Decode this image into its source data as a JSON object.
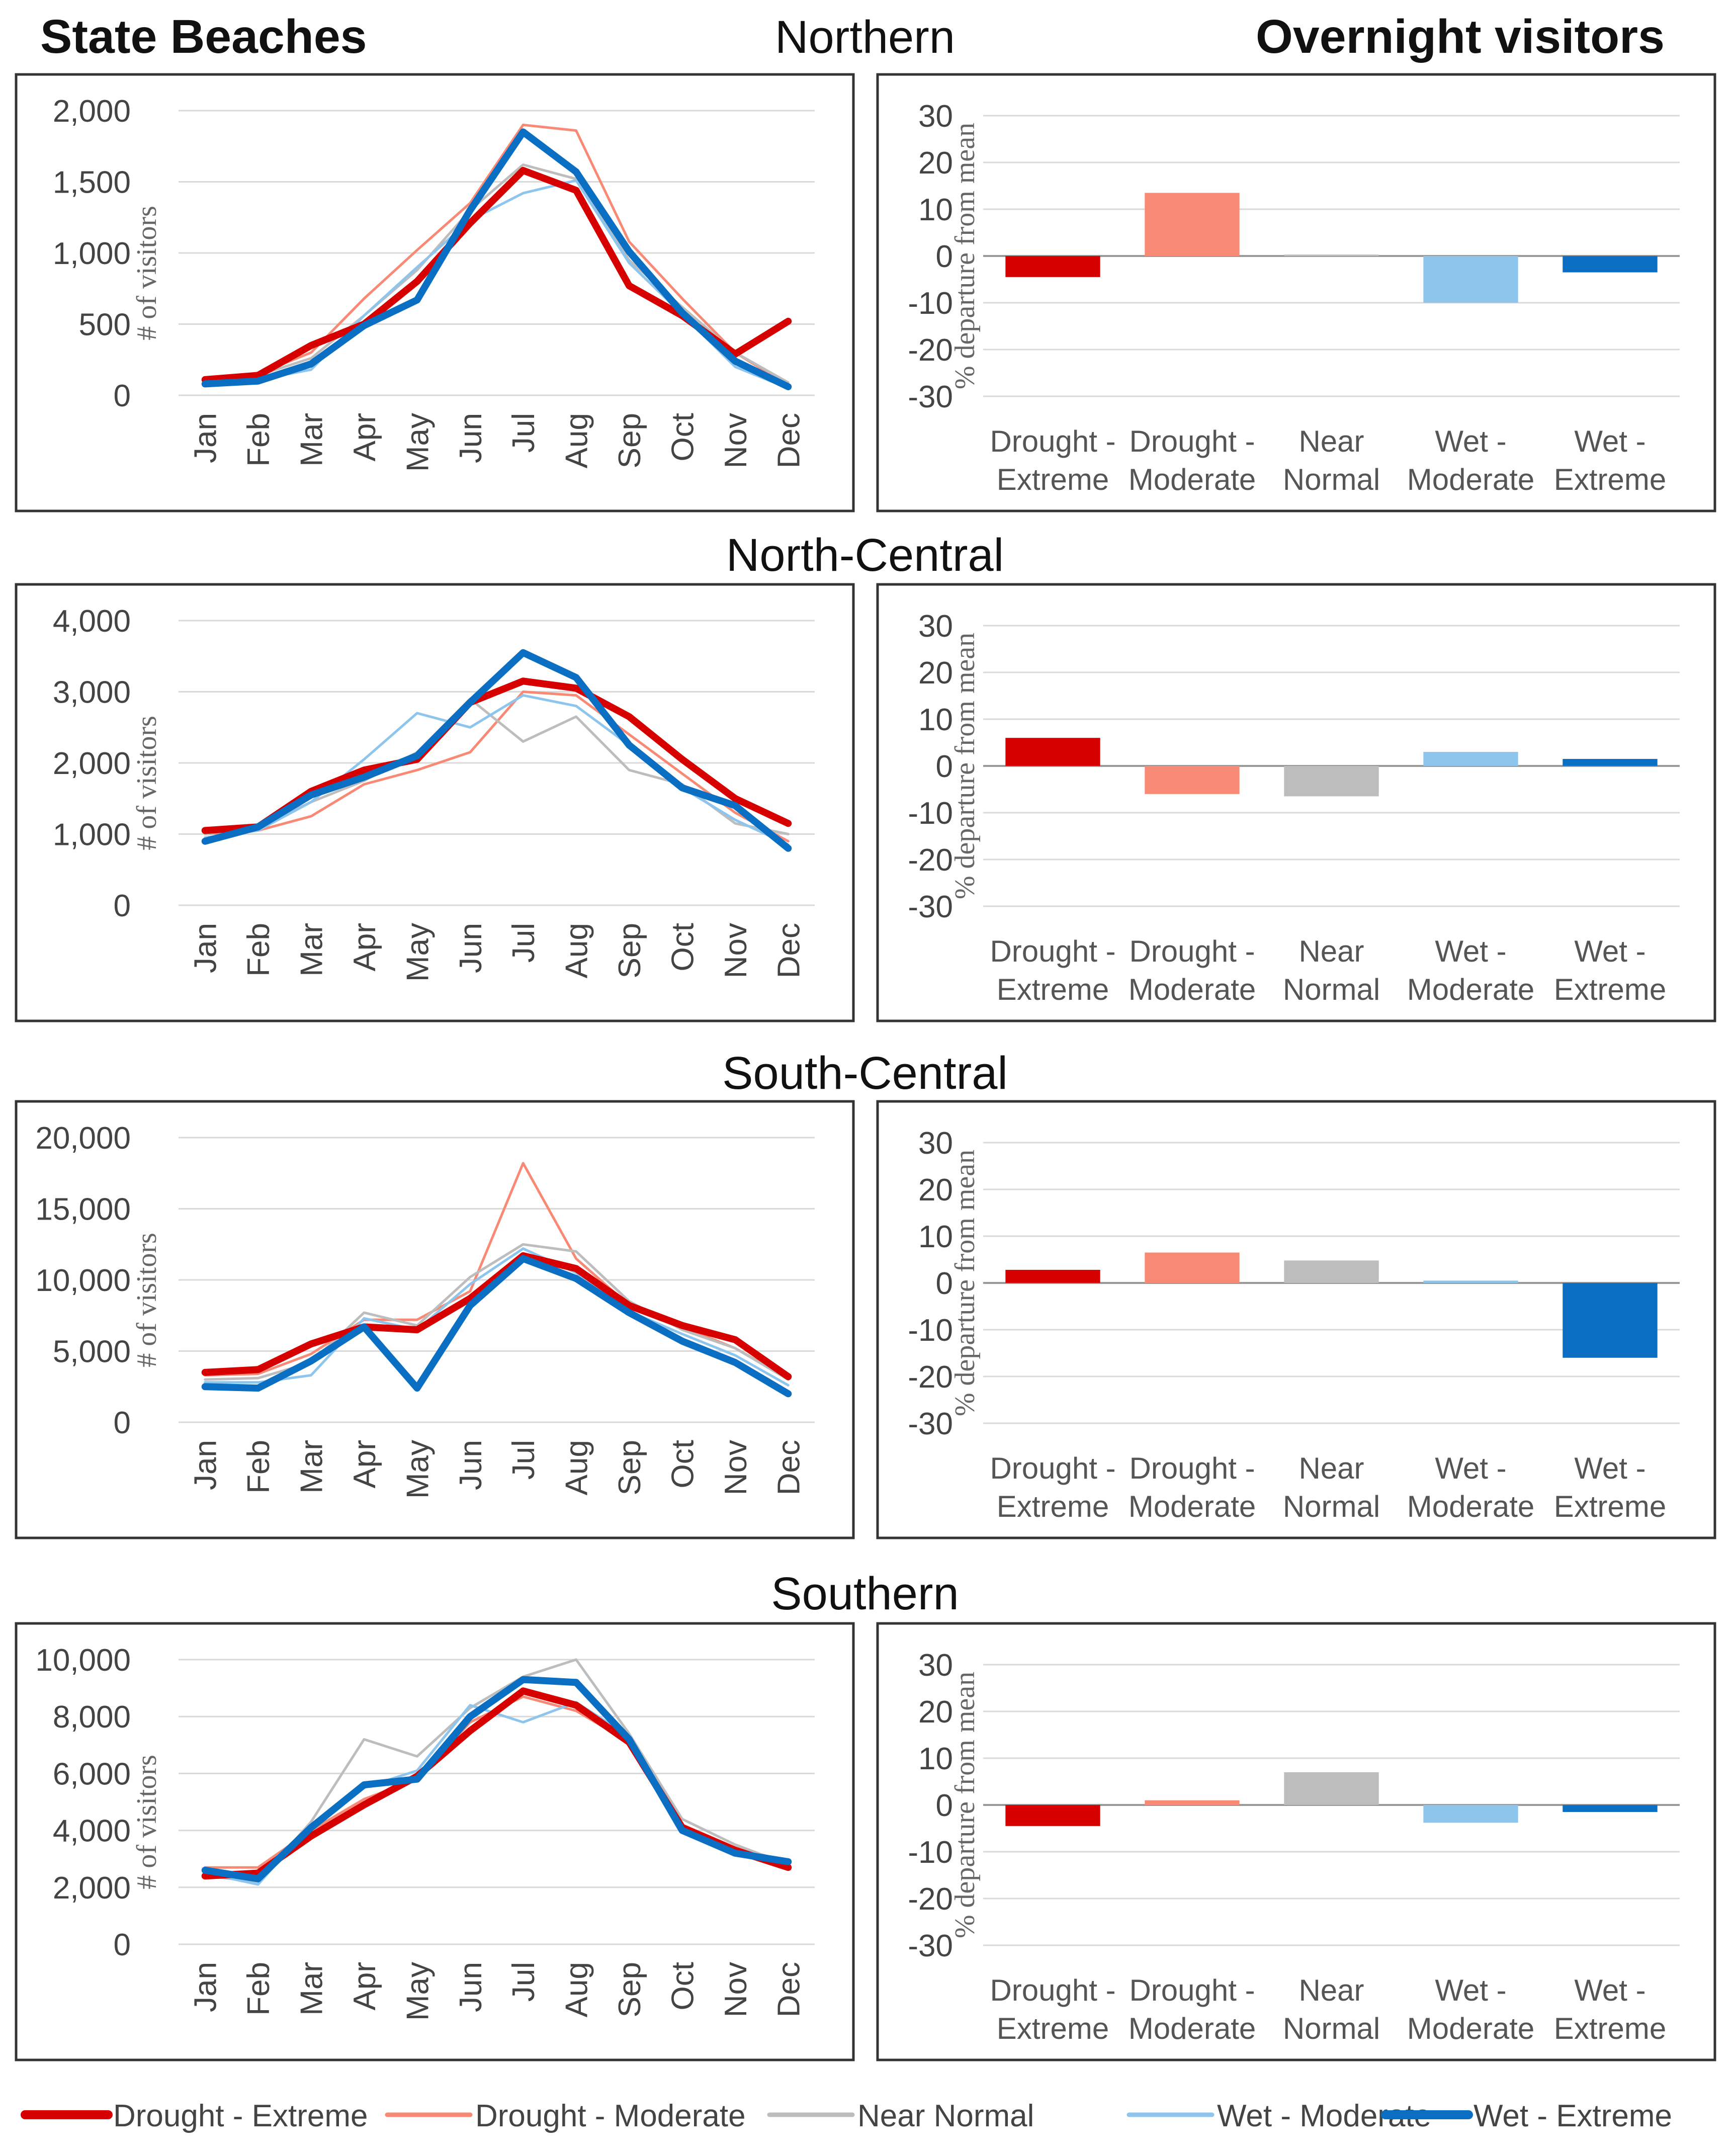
{
  "header": {
    "left_title": "State Beaches",
    "right_title": "Overnight visitors"
  },
  "colors": {
    "Drought - Extreme": "#d60000",
    "Drought - Moderate": "#f88a75",
    "Near Normal": "#bdbdbd",
    "Wet - Moderate": "#8ec5ec",
    "Wet - Extreme": "#0a6fc2"
  },
  "legend": [
    "Drought - Extreme",
    "Drought - Moderate",
    "Near Normal",
    "Wet -  Moderate",
    "Wet - Extreme"
  ],
  "chart_data": [
    {
      "region": "Northern",
      "line": {
        "type": "line",
        "ylabel": "# of visitors",
        "ylim": [
          0,
          2000
        ],
        "yticks": [
          0,
          500,
          1000,
          1500,
          2000
        ],
        "ytick_labels": [
          "0",
          "500",
          "1,000",
          "1,500",
          "2,000"
        ],
        "categories": [
          "Jan",
          "Feb",
          "Mar",
          "Apr",
          "May",
          "Jun",
          "Jul",
          "Aug",
          "Sep",
          "Oct",
          "Nov",
          "Dec"
        ],
        "series": [
          {
            "name": "Drought - Moderate",
            "values": [
              90,
              150,
              300,
              680,
              1020,
              1350,
              1900,
              1860,
              1080,
              680,
              300,
              70
            ]
          },
          {
            "name": "Near Normal",
            "values": [
              100,
              140,
              260,
              560,
              880,
              1300,
              1620,
              1520,
              950,
              620,
              300,
              90
            ]
          },
          {
            "name": "Wet - Moderate",
            "values": [
              70,
              110,
              180,
              560,
              900,
              1230,
              1420,
              1510,
              930,
              570,
              200,
              50
            ]
          },
          {
            "name": "Drought - Extreme",
            "values": [
              110,
              140,
              350,
              500,
              800,
              1210,
              1580,
              1440,
              770,
              560,
              290,
              520
            ]
          },
          {
            "name": "Wet - Extreme",
            "values": [
              80,
              100,
              220,
              490,
              670,
              1300,
              1850,
              1570,
              1010,
              580,
              240,
              60
            ]
          }
        ]
      },
      "bar": {
        "type": "bar",
        "ylabel": "% departure from mean",
        "ylim": [
          -30,
          30
        ],
        "yticks": [
          -30,
          -20,
          -10,
          0,
          10,
          20,
          30
        ],
        "ytick_labels": [
          "-30",
          "-20",
          "-10",
          "0",
          "10",
          "20",
          "30"
        ],
        "categories": [
          [
            "Drought -",
            "Extreme"
          ],
          [
            "Drought -",
            "Moderate"
          ],
          [
            "Near",
            "Normal"
          ],
          [
            "Wet -",
            "Moderate"
          ],
          [
            "Wet -",
            "Extreme"
          ]
        ],
        "values": [
          -4.5,
          13.5,
          0.3,
          -10,
          -3.5
        ]
      }
    },
    {
      "region": "North-Central",
      "line": {
        "type": "line",
        "ylabel": "# of visitors",
        "ylim": [
          0,
          4000
        ],
        "yticks": [
          0,
          1000,
          2000,
          3000,
          4000
        ],
        "ytick_labels": [
          "0",
          "1,000",
          "2,000",
          "3,000",
          "4,000"
        ],
        "categories": [
          "Jan",
          "Feb",
          "Mar",
          "Apr",
          "May",
          "Jun",
          "Jul",
          "Aug",
          "Sep",
          "Oct",
          "Nov",
          "Dec"
        ],
        "series": [
          {
            "name": "Drought - Moderate",
            "values": [
              1000,
              1050,
              1250,
              1700,
              1900,
              2150,
              3000,
              2950,
              2400,
              1850,
              1300,
              900
            ]
          },
          {
            "name": "Near Normal",
            "values": [
              1000,
              1100,
              1450,
              1750,
              2150,
              2900,
              2300,
              2650,
              1900,
              1700,
              1150,
              1000
            ]
          },
          {
            "name": "Wet - Moderate",
            "values": [
              950,
              1050,
              1450,
              2050,
              2700,
              2500,
              2950,
              2800,
              2250,
              1650,
              1200,
              850
            ]
          },
          {
            "name": "Drought - Extreme",
            "values": [
              1050,
              1100,
              1600,
              1900,
              2050,
              2850,
              3150,
              3050,
              2650,
              2050,
              1500,
              1150
            ]
          },
          {
            "name": "Wet - Extreme",
            "values": [
              900,
              1100,
              1550,
              1800,
              2100,
              2850,
              3550,
              3200,
              2250,
              1650,
              1400,
              800
            ]
          }
        ]
      },
      "bar": {
        "type": "bar",
        "ylabel": "% departure from mean",
        "ylim": [
          -30,
          30
        ],
        "yticks": [
          -30,
          -20,
          -10,
          0,
          10,
          20,
          30
        ],
        "ytick_labels": [
          "-30",
          "-20",
          "-10",
          "0",
          "10",
          "20",
          "30"
        ],
        "categories": [
          [
            "Drought -",
            "Extreme"
          ],
          [
            "Drought -",
            "Moderate"
          ],
          [
            "Near",
            "Normal"
          ],
          [
            "Wet -",
            "Moderate"
          ],
          [
            "Wet -",
            "Extreme"
          ]
        ],
        "values": [
          6,
          -6,
          -6.5,
          3,
          1.5
        ]
      }
    },
    {
      "region": "South-Central",
      "line": {
        "type": "line",
        "ylabel": "# of visitors",
        "ylim": [
          0,
          20000
        ],
        "yticks": [
          0,
          5000,
          10000,
          15000,
          20000
        ],
        "ytick_labels": [
          "0",
          "5,000",
          "10,000",
          "15,000",
          "20,000"
        ],
        "categories": [
          "Jan",
          "Feb",
          "Mar",
          "Apr",
          "May",
          "Jun",
          "Jul",
          "Aug",
          "Sep",
          "Oct",
          "Nov",
          "Dec"
        ],
        "series": [
          {
            "name": "Drought - Moderate",
            "values": [
              3300,
              3400,
              4800,
              7200,
              7200,
              9200,
              18200,
              11500,
              8200,
              6700,
              5200,
              3100
            ]
          },
          {
            "name": "Near Normal",
            "values": [
              3000,
              3100,
              4200,
              7700,
              6800,
              10200,
              12500,
              12000,
              8500,
              6500,
              5200,
              3000
            ]
          },
          {
            "name": "Wet - Moderate",
            "values": [
              2800,
              2800,
              3300,
              7300,
              6500,
              9700,
              12200,
              10500,
              7800,
              6200,
              4700,
              2600
            ]
          },
          {
            "name": "Drought - Extreme",
            "values": [
              3500,
              3700,
              5500,
              6700,
              6500,
              8700,
              11700,
              10800,
              8200,
              6800,
              5800,
              3200
            ]
          },
          {
            "name": "Wet - Extreme",
            "values": [
              2500,
              2400,
              4300,
              6700,
              2400,
              8200,
              11500,
              10100,
              7700,
              5700,
              4200,
              2000
            ]
          }
        ]
      },
      "bar": {
        "type": "bar",
        "ylabel": "% departure from mean",
        "ylim": [
          -30,
          30
        ],
        "yticks": [
          -30,
          -20,
          -10,
          0,
          10,
          20,
          30
        ],
        "ytick_labels": [
          "-30",
          "-20",
          "-10",
          "0",
          "10",
          "20",
          "30"
        ],
        "categories": [
          [
            "Drought -",
            "Extreme"
          ],
          [
            "Drought -",
            "Moderate"
          ],
          [
            "Near",
            "Normal"
          ],
          [
            "Wet -",
            "Moderate"
          ],
          [
            "Wet -",
            "Extreme"
          ]
        ],
        "values": [
          2.8,
          6.5,
          4.8,
          0.5,
          -16
        ]
      }
    },
    {
      "region": "Southern",
      "line": {
        "type": "line",
        "ylabel": "# of visitors",
        "ylim": [
          0,
          10000
        ],
        "yticks": [
          0,
          2000,
          4000,
          6000,
          8000,
          10000
        ],
        "ytick_labels": [
          "0",
          "2,000",
          "4,000",
          "6,000",
          "8,000",
          "10,000"
        ],
        "categories": [
          "Jan",
          "Feb",
          "Mar",
          "Apr",
          "May",
          "Jun",
          "Jul",
          "Aug",
          "Sep",
          "Oct",
          "Nov",
          "Dec"
        ],
        "series": [
          {
            "name": "Drought - Moderate",
            "values": [
              2700,
              2700,
              4000,
              5100,
              5800,
              7800,
              8700,
              8200,
              7100,
              4200,
              3400,
              2900
            ]
          },
          {
            "name": "Near Normal",
            "values": [
              2400,
              2200,
              4300,
              7200,
              6600,
              8300,
              9400,
              10000,
              7400,
              4400,
              3500,
              2800
            ]
          },
          {
            "name": "Wet - Moderate",
            "values": [
              2500,
              2100,
              4200,
              5500,
              6100,
              8400,
              7800,
              8500,
              7300,
              4100,
              3300,
              2800
            ]
          },
          {
            "name": "Drought - Extreme",
            "values": [
              2400,
              2500,
              3800,
              4900,
              5900,
              7500,
              8900,
              8400,
              7100,
              4100,
              3300,
              2700
            ]
          },
          {
            "name": "Wet - Extreme",
            "values": [
              2600,
              2300,
              4100,
              5600,
              5800,
              8000,
              9300,
              9200,
              7200,
              4000,
              3200,
              2900
            ]
          }
        ]
      },
      "bar": {
        "type": "bar",
        "ylabel": "% departure from mean",
        "ylim": [
          -30,
          30
        ],
        "yticks": [
          -30,
          -20,
          -10,
          0,
          10,
          20,
          30
        ],
        "ytick_labels": [
          "-30",
          "-20",
          "-10",
          "0",
          "10",
          "20",
          "30"
        ],
        "categories": [
          [
            "Drought -",
            "Extreme"
          ],
          [
            "Drought -",
            "Moderate"
          ],
          [
            "Near",
            "Normal"
          ],
          [
            "Wet -",
            "Moderate"
          ],
          [
            "Wet -",
            "Extreme"
          ]
        ],
        "values": [
          -4.5,
          1,
          7,
          -3.8,
          -1.5
        ]
      }
    }
  ]
}
